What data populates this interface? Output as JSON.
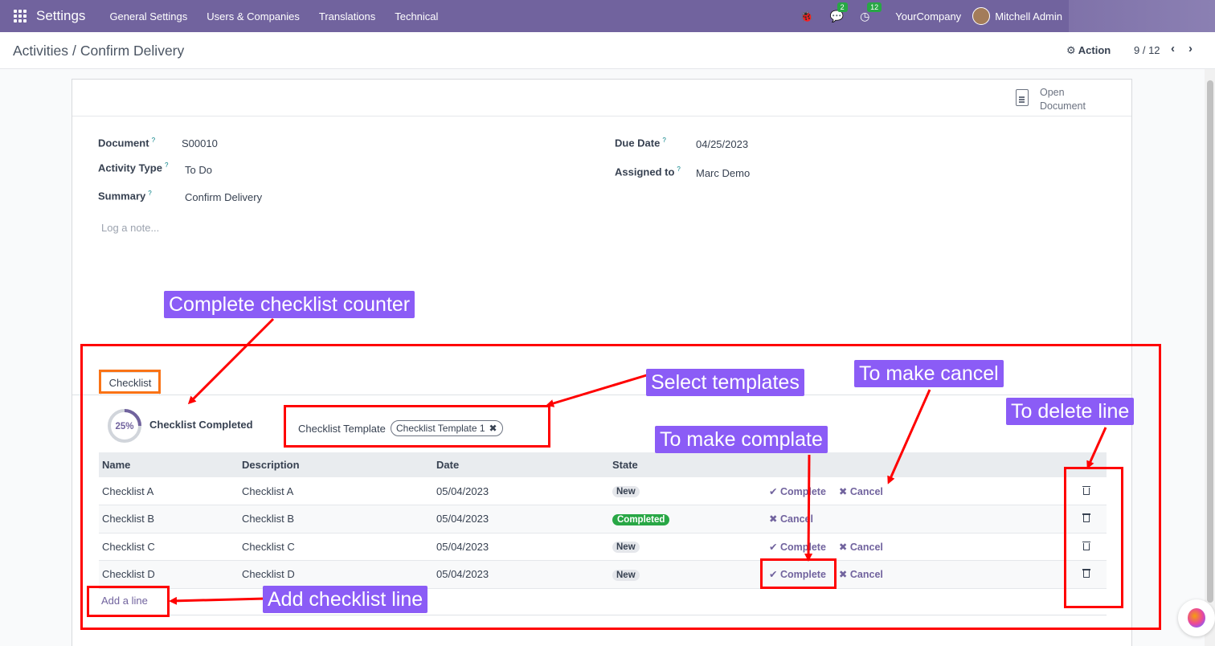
{
  "navbar": {
    "app_title": "Settings",
    "menu": [
      "General Settings",
      "Users & Companies",
      "Translations",
      "Technical"
    ],
    "messages_count": "2",
    "activities_count": "12",
    "company": "YourCompany",
    "user": "Mitchell Admin"
  },
  "control_panel": {
    "breadcrumb_parent": "Activities",
    "breadcrumb_current": "Confirm Delivery",
    "action_label": "Action",
    "pager": "9 / 12"
  },
  "form": {
    "open_document_line1": "Open",
    "open_document_line2": "Document",
    "document_label": "Document",
    "document_value": "S00010",
    "activity_type_label": "Activity Type",
    "activity_type_value": "To Do",
    "summary_label": "Summary",
    "summary_value": "Confirm Delivery",
    "due_date_label": "Due Date",
    "due_date_value": "04/25/2023",
    "assigned_to_label": "Assigned to",
    "assigned_to_value": "Marc Demo",
    "log_note_placeholder": "Log a note...",
    "help_mark": "?"
  },
  "checklist": {
    "tab_label": "Checklist",
    "progress_text": "25%",
    "progress_fraction": 0.25,
    "completed_label": "Checklist Completed",
    "template_label": "Checklist Template",
    "template_tag": "Checklist Template 1",
    "columns": [
      "Name",
      "Description",
      "Date",
      "State"
    ],
    "complete_label": "Complete",
    "cancel_label": "Cancel",
    "rows": [
      {
        "name": "Checklist A",
        "description": "Checklist A",
        "date": "05/04/2023",
        "state": "New"
      },
      {
        "name": "Checklist B",
        "description": "Checklist B",
        "date": "05/04/2023",
        "state": "Completed"
      },
      {
        "name": "Checklist C",
        "description": "Checklist C",
        "date": "05/04/2023",
        "state": "New"
      },
      {
        "name": "Checklist D",
        "description": "Checklist D",
        "date": "05/04/2023",
        "state": "New"
      }
    ],
    "add_line": "Add a line"
  },
  "annotations": {
    "counter": "Complete checklist counter",
    "templates": "Select templates",
    "cancel": "To make cancel",
    "delete": "To delete line",
    "complete": "To make complate",
    "add_line": "Add checklist line"
  },
  "colors": {
    "brand": "#71639e",
    "annotation_box": "#ff0000",
    "annotation_label": "#8b5cf6",
    "completed_badge": "#28a745"
  }
}
